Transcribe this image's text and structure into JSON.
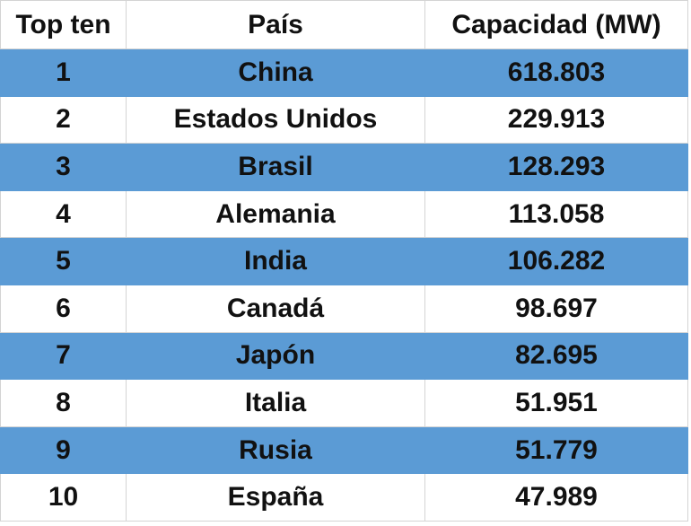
{
  "table": {
    "header": [
      "Top ten",
      "País",
      "Capacidad (MW)"
    ],
    "rows": [
      [
        "1",
        "China",
        "618.803"
      ],
      [
        "2",
        "Estados Unidos",
        "229.913"
      ],
      [
        "3",
        "Brasil",
        "128.293"
      ],
      [
        "4",
        "Alemania",
        "113.058"
      ],
      [
        "5",
        "India",
        "106.282"
      ],
      [
        "6",
        "Canadá",
        "98.697"
      ],
      [
        "7",
        "Japón",
        "82.695"
      ],
      [
        "8",
        "Italia",
        "51.951"
      ],
      [
        "9",
        "Rusia",
        "51.779"
      ],
      [
        "10",
        "España",
        "47.989"
      ]
    ]
  }
}
